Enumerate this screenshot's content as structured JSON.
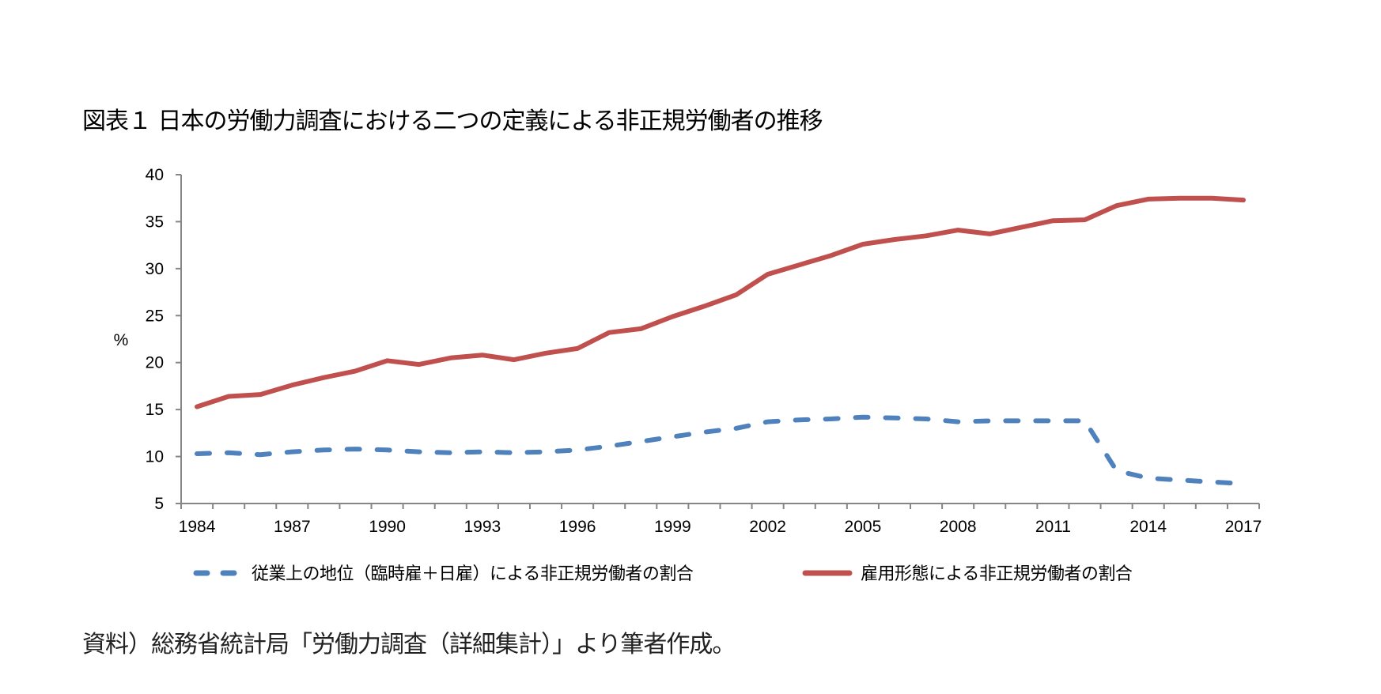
{
  "title": "図表１ 日本の労働力調査における二つの定義による非正規労働者の推移",
  "source": "資料）総務省統計局「労働力調査（詳細集計）」より筆者作成。",
  "colors": {
    "series_blue": "#4f81bd",
    "series_red": "#c0504d",
    "axis": "#868686"
  },
  "chart_data": {
    "type": "line",
    "title": "図表１ 日本の労働力調査における二つの定義による非正規労働者の推移",
    "xlabel": "",
    "ylabel": "%",
    "ylim": [
      5,
      40
    ],
    "yticks": [
      5,
      10,
      15,
      20,
      25,
      30,
      35,
      40
    ],
    "grid": false,
    "legend_position": "bottom",
    "x": [
      1984,
      1985,
      1986,
      1987,
      1988,
      1989,
      1990,
      1991,
      1992,
      1993,
      1994,
      1995,
      1996,
      1997,
      1998,
      1999,
      2000,
      2001,
      2002,
      2003,
      2004,
      2005,
      2006,
      2007,
      2008,
      2009,
      2010,
      2011,
      2012,
      2013,
      2014,
      2015,
      2016,
      2017
    ],
    "xtick_labels": [
      "1984",
      "1987",
      "1990",
      "1993",
      "1996",
      "1999",
      "2002",
      "2005",
      "2008",
      "2011",
      "2014",
      "2017"
    ],
    "series": [
      {
        "name": "従業上の地位（臨時雇＋日雇）による非正規労働者の割合",
        "style": "dashed",
        "color": "#4f81bd",
        "values": [
          10.3,
          10.4,
          10.2,
          10.5,
          10.7,
          10.8,
          10.7,
          10.5,
          10.4,
          10.5,
          10.4,
          10.5,
          10.7,
          11.1,
          11.6,
          12.1,
          12.6,
          13.0,
          13.7,
          13.9,
          14.0,
          14.2,
          14.1,
          14.0,
          13.7,
          13.8,
          13.8,
          13.8,
          13.8,
          8.5,
          7.7,
          7.5,
          7.3,
          7.1
        ]
      },
      {
        "name": "雇用形態による非正規労働者の割合",
        "style": "solid",
        "color": "#c0504d",
        "values": [
          15.3,
          16.4,
          16.6,
          17.6,
          18.4,
          19.1,
          20.2,
          19.8,
          20.5,
          20.8,
          20.3,
          21.0,
          21.5,
          23.2,
          23.6,
          24.9,
          26.0,
          27.2,
          29.4,
          30.4,
          31.4,
          32.6,
          33.1,
          33.5,
          34.1,
          33.7,
          34.4,
          35.1,
          35.2,
          36.7,
          37.4,
          37.5,
          37.5,
          37.3
        ]
      }
    ]
  }
}
